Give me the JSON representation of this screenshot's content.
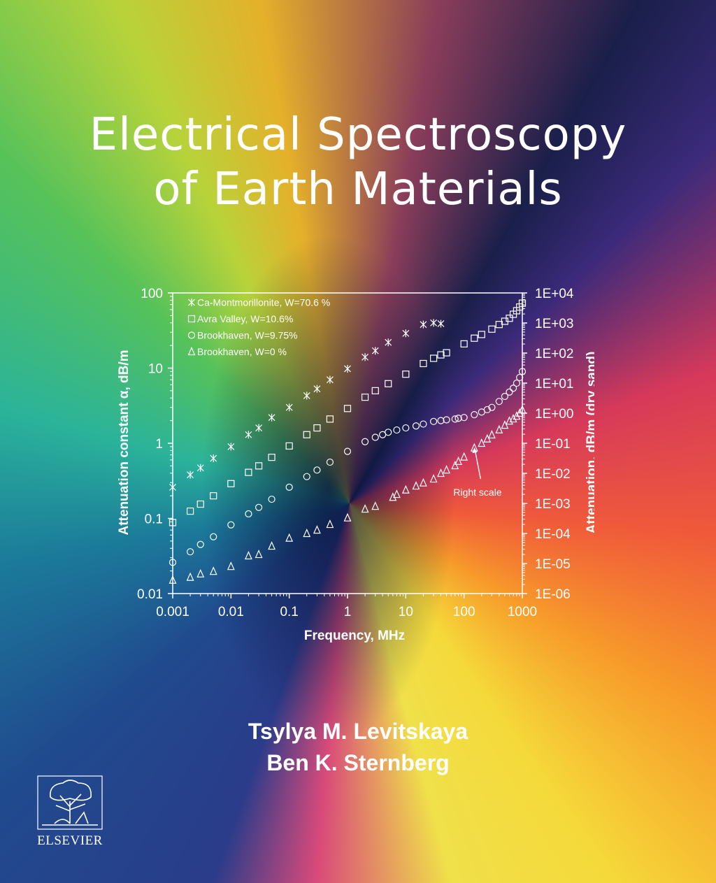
{
  "cover": {
    "title_line1": "Electrical Spectroscopy",
    "title_line2": "of Earth Materials",
    "author1": "Tsylya M. Levitskaya",
    "author2": "Ben K. Sternberg",
    "publisher": "ELSEVIER"
  },
  "chart_data": {
    "type": "scatter",
    "x_scale": "log",
    "y_scale": "log",
    "xlabel": "Frequency, MHz",
    "ylabel": "Attenuation constant α, dB/m",
    "y2label": "Attenuation, dB/m (dry sand)",
    "xlim": [
      0.001,
      1000
    ],
    "ylim": [
      0.01,
      100
    ],
    "y2lim": [
      1e-06,
      10000
    ],
    "x_ticks": [
      "0.001",
      "0.01",
      "0.1",
      "1",
      "10",
      "100",
      "1000"
    ],
    "y_ticks": [
      "0.01",
      "0.1",
      "1",
      "10",
      "100"
    ],
    "y2_ticks": [
      "1E-06",
      "1E-05",
      "1E-04",
      "1E-03",
      "1E-02",
      "1E-01",
      "1E+00",
      "1E+01",
      "1E+02",
      "1E+03",
      "1E+04"
    ],
    "legend_position": "top-left",
    "annotation": {
      "text": "Right scale",
      "x": 150,
      "y2": 0.1
    },
    "colors": {
      "text": "#ffffff",
      "axis": "#ffffff"
    },
    "series": [
      {
        "name": "Ca-Montmorillonite, W=70.6 %",
        "marker": "asterisk",
        "axis": "left",
        "x": [
          0.001,
          0.002,
          0.003,
          0.005,
          0.01,
          0.02,
          0.03,
          0.05,
          0.1,
          0.2,
          0.3,
          0.5,
          1,
          2,
          3,
          5,
          10,
          20,
          30,
          40
        ],
        "y": [
          0.26,
          0.38,
          0.47,
          0.63,
          0.9,
          1.3,
          1.6,
          2.2,
          3.0,
          4.3,
          5.3,
          7.0,
          9.8,
          14,
          17,
          22,
          29,
          38,
          40,
          39
        ]
      },
      {
        "name": "Avra Valley, W=10.6%",
        "marker": "square",
        "axis": "left",
        "x": [
          0.001,
          0.002,
          0.003,
          0.005,
          0.01,
          0.02,
          0.03,
          0.05,
          0.1,
          0.2,
          0.3,
          0.5,
          1,
          2,
          3,
          5,
          10,
          20,
          30,
          40,
          50,
          100,
          150,
          200,
          300,
          400,
          500,
          600,
          700,
          800,
          900,
          1000
        ],
        "y": [
          0.088,
          0.125,
          0.155,
          0.2,
          0.29,
          0.41,
          0.5,
          0.65,
          0.92,
          1.3,
          1.6,
          2.1,
          2.9,
          4.1,
          5.0,
          6.2,
          8.3,
          11.5,
          13.5,
          15,
          16,
          21,
          25,
          28,
          33,
          38,
          42,
          46,
          52,
          58,
          65,
          73
        ]
      },
      {
        "name": "Brookhaven, W=9.75%",
        "marker": "circle",
        "axis": "left",
        "x": [
          0.001,
          0.002,
          0.003,
          0.005,
          0.01,
          0.02,
          0.03,
          0.05,
          0.1,
          0.2,
          0.3,
          0.5,
          1,
          2,
          3,
          4,
          5,
          7,
          10,
          15,
          20,
          30,
          40,
          50,
          70,
          80,
          100,
          150,
          200,
          250,
          300,
          400,
          500,
          600,
          700,
          800,
          900,
          1000
        ],
        "y": [
          0.026,
          0.036,
          0.045,
          0.057,
          0.082,
          0.115,
          0.14,
          0.18,
          0.26,
          0.36,
          0.44,
          0.56,
          0.78,
          1.05,
          1.2,
          1.3,
          1.4,
          1.5,
          1.6,
          1.7,
          1.8,
          1.95,
          2.0,
          2.05,
          2.1,
          2.15,
          2.2,
          2.4,
          2.6,
          2.8,
          3.0,
          3.6,
          4.2,
          4.8,
          5.4,
          6.3,
          7.5,
          9.0
        ]
      },
      {
        "name": "Brookhaven, W=0 %",
        "marker": "triangle",
        "axis": "right",
        "x": [
          0.001,
          0.002,
          0.003,
          0.005,
          0.01,
          0.02,
          0.03,
          0.05,
          0.1,
          0.2,
          0.3,
          0.5,
          1,
          2,
          3,
          6,
          7,
          10,
          15,
          20,
          30,
          40,
          50,
          70,
          80,
          100,
          150,
          200,
          250,
          300,
          400,
          500,
          600,
          700,
          800,
          900,
          1000
        ],
        "y": [
          2.8e-06,
          3.5e-06,
          4.5e-06,
          5.5e-06,
          8e-06,
          1.8e-05,
          2e-05,
          3.8e-05,
          7e-05,
          0.0001,
          0.00013,
          0.0002,
          0.00033,
          0.00065,
          0.0008,
          0.0016,
          0.002,
          0.0028,
          0.0038,
          0.0048,
          0.0065,
          0.01,
          0.013,
          0.018,
          0.025,
          0.035,
          0.07,
          0.1,
          0.14,
          0.19,
          0.28,
          0.4,
          0.55,
          0.65,
          0.8,
          1.0,
          1.3
        ]
      }
    ]
  }
}
